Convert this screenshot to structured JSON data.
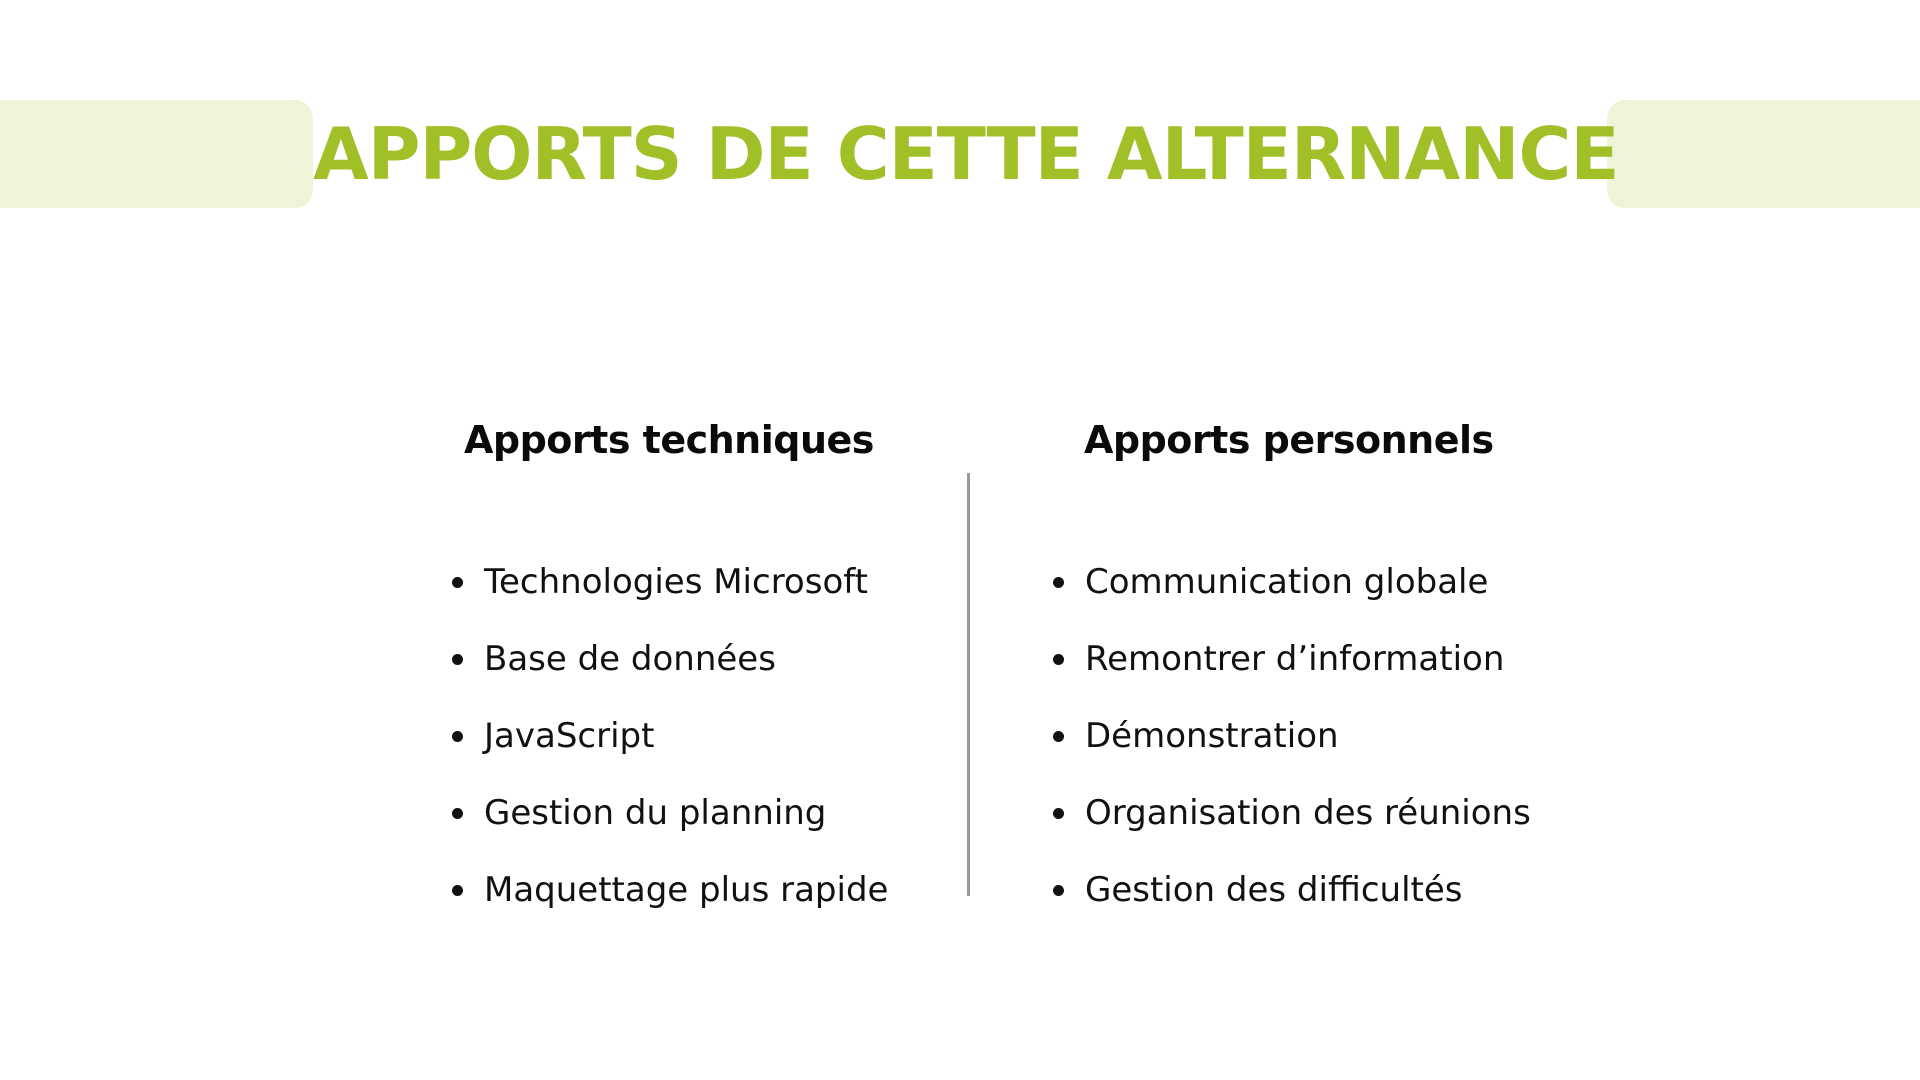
{
  "title": "APPORTS DE CETTE ALTERNANCE",
  "colors": {
    "accent": "#a1bf27",
    "band": "#eff3d8",
    "text": "#111111",
    "divider": "#9a9a9a"
  },
  "columns": [
    {
      "heading": "Apports techniques",
      "items": [
        "Technologies Microsoft",
        "Base de données",
        "JavaScript",
        "Gestion du planning",
        "Maquettage plus rapide"
      ]
    },
    {
      "heading": "Apports personnels",
      "items": [
        "Communication globale",
        "Remontrer d’information",
        "Démonstration",
        "Organisation des réunions",
        "Gestion des difficultés"
      ]
    }
  ]
}
